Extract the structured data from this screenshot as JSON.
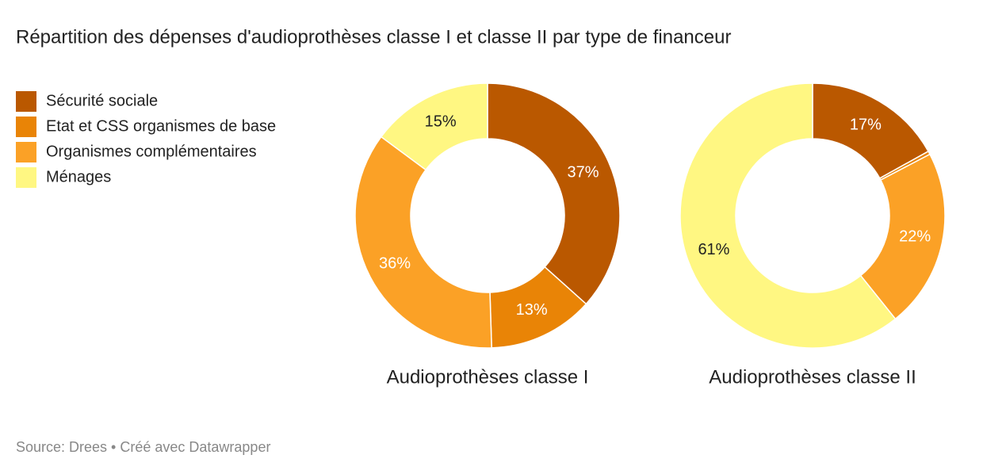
{
  "title": "Répartition des dépenses d'audioprothèses classe I et classe II par type de financeur",
  "source": "Source: Drees • Créé avec Datawrapper",
  "chart_data": [
    {
      "type": "donut",
      "title": "Audioprothèses classe I",
      "categories": [
        "Sécurité sociale",
        "Etat et CSS organismes de base",
        "Organismes complémentaires",
        "Ménages"
      ],
      "values": [
        37,
        13,
        36,
        15
      ],
      "value_labels": [
        "37%",
        "13%",
        "36%",
        "15%"
      ],
      "colors": [
        "#ba5800",
        "#e98406",
        "#fba126",
        "#fff782"
      ]
    },
    {
      "type": "donut",
      "title": "Audioprothèses classe II",
      "categories": [
        "Sécurité sociale",
        "Etat et CSS organismes de base",
        "Organismes complémentaires",
        "Ménages"
      ],
      "values": [
        17,
        0.4,
        22,
        61
      ],
      "value_labels": [
        "17%",
        null,
        "22%",
        "61%"
      ],
      "colors": [
        "#ba5800",
        "#e98406",
        "#fba126",
        "#fff782"
      ]
    }
  ]
}
